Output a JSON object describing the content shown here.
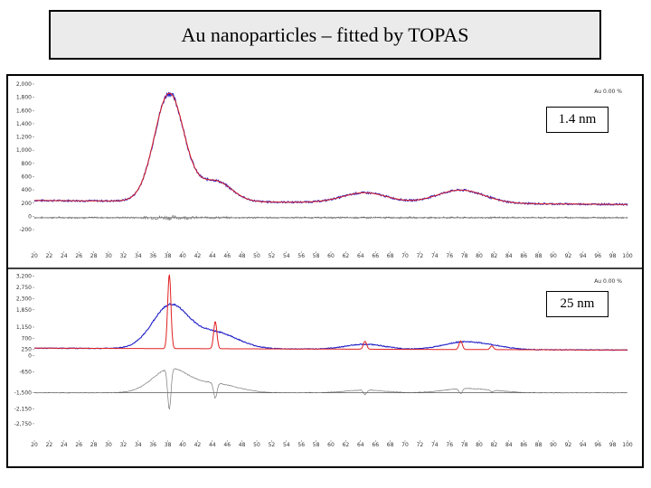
{
  "title": "Au nanoparticles – fitted by TOPAS",
  "colors": {
    "observed": "#1f1fc8",
    "calculated": "#e02020",
    "difference": "#7a7a7a",
    "frame": "#000000",
    "title_bg": "#ebebeb"
  },
  "chart_data": [
    {
      "type": "line",
      "label": "1.4 nm",
      "legend": "Au 0.00 %",
      "xlim": [
        20,
        100
      ],
      "ylim": [
        -500,
        2000
      ],
      "x_ticks": [
        20,
        22,
        24,
        26,
        28,
        30,
        32,
        34,
        36,
        38,
        40,
        42,
        44,
        46,
        48,
        50,
        52,
        54,
        56,
        58,
        60,
        62,
        64,
        66,
        68,
        70,
        72,
        74,
        76,
        78,
        80,
        82,
        84,
        86,
        88,
        90,
        92,
        94,
        96,
        98,
        100
      ],
      "y_ticks": [
        {
          "value": 2000,
          "label": "2,000"
        },
        {
          "value": 1800,
          "label": "1,800"
        },
        {
          "value": 1600,
          "label": "1,600"
        },
        {
          "value": 1400,
          "label": "1,400"
        },
        {
          "value": 1200,
          "label": "1,200"
        },
        {
          "value": 1000,
          "label": "1,000"
        },
        {
          "value": 800,
          "label": "800"
        },
        {
          "value": 600,
          "label": "600"
        },
        {
          "value": 400,
          "label": "400"
        },
        {
          "value": 200,
          "label": "200"
        },
        {
          "value": 0,
          "label": "0"
        },
        {
          "value": -200,
          "label": "-200"
        }
      ],
      "background_level": 240,
      "difference_offset": -20,
      "peaks": [
        {
          "position": 38.2,
          "height": 1630,
          "width": 2.0
        },
        {
          "position": 44.4,
          "height": 310,
          "width": 2.2
        },
        {
          "position": 64.6,
          "height": 150,
          "width": 3.0
        },
        {
          "position": 77.5,
          "height": 200,
          "width": 3.2
        }
      ]
    },
    {
      "type": "line",
      "label": "25 nm",
      "legend": "Au 0.00 %",
      "xlim": [
        20,
        100
      ],
      "ylim": [
        -3300,
        3300
      ],
      "x_ticks": [
        20,
        22,
        24,
        26,
        28,
        30,
        32,
        34,
        36,
        38,
        40,
        42,
        44,
        46,
        48,
        50,
        52,
        54,
        56,
        58,
        60,
        62,
        64,
        66,
        68,
        70,
        72,
        74,
        76,
        78,
        80,
        82,
        84,
        86,
        88,
        90,
        92,
        94,
        96,
        98,
        100
      ],
      "y_ticks": [
        {
          "value": 3200,
          "label": "3,200"
        },
        {
          "value": 2750,
          "label": "2,750"
        },
        {
          "value": 2300,
          "label": "2,300"
        },
        {
          "value": 1850,
          "label": "1,850"
        },
        {
          "value": 1150,
          "label": "1,150"
        },
        {
          "value": 700,
          "label": "700"
        },
        {
          "value": 250,
          "label": "250"
        },
        {
          "value": 0,
          "label": "0"
        },
        {
          "value": -650,
          "label": "-650"
        },
        {
          "value": -1500,
          "label": "-1,500"
        },
        {
          "value": -2150,
          "label": "-2,150"
        },
        {
          "value": -2750,
          "label": "-2,750"
        }
      ],
      "background_level": 300,
      "difference_offset": -1500,
      "observed_peaks": [
        {
          "position": 38.3,
          "height": 1700,
          "width": 2.4
        },
        {
          "position": 44.4,
          "height": 650,
          "width": 3.0
        },
        {
          "position": 64.6,
          "height": 200,
          "width": 2.6
        },
        {
          "position": 77.6,
          "height": 280,
          "width": 2.6
        },
        {
          "position": 81.7,
          "height": 120,
          "width": 2.4
        }
      ],
      "calculated_peaks": [
        {
          "position": 38.2,
          "height": 3000,
          "width": 0.22
        },
        {
          "position": 44.4,
          "height": 1100,
          "width": 0.22
        },
        {
          "position": 64.6,
          "height": 320,
          "width": 0.22
        },
        {
          "position": 77.5,
          "height": 350,
          "width": 0.22
        },
        {
          "position": 81.7,
          "height": 150,
          "width": 0.22
        }
      ]
    }
  ]
}
